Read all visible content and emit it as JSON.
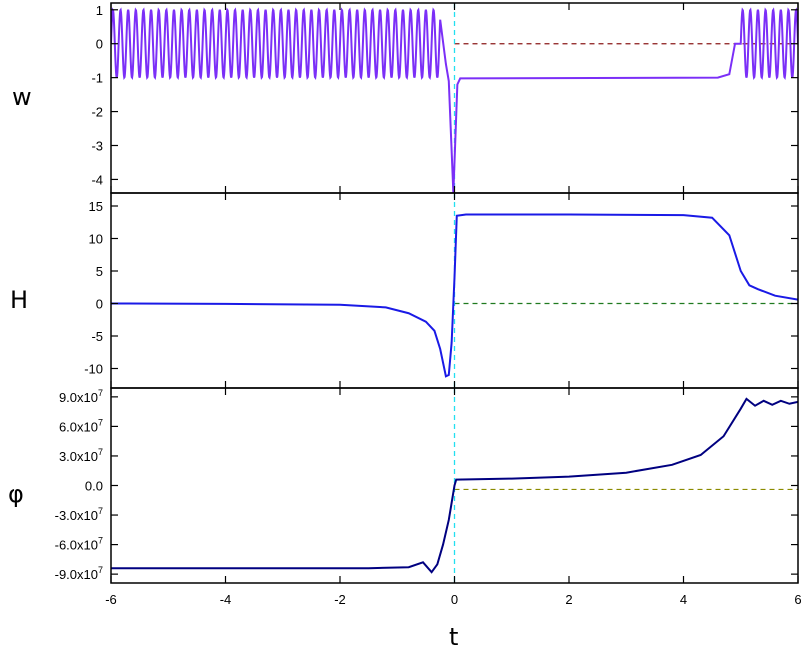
{
  "chart_data": [
    {
      "type": "line",
      "panel": "top",
      "ylabel": "w",
      "xlabel": "",
      "xlim": [
        -6,
        6
      ],
      "ylim": [
        -4.4,
        1.2
      ],
      "yticks": [
        1,
        0,
        -1,
        -2,
        -3,
        -4
      ],
      "ytick_labels": [
        "1",
        "0",
        "-1",
        "-2",
        "-3",
        "-4"
      ],
      "reference_line": {
        "y": 0,
        "style": "dashed",
        "color": "#8b1a1a"
      },
      "vertical_marker": {
        "x": 0,
        "style": "dashed",
        "color": "#22e0f0"
      },
      "series": [
        {
          "color": "#7b2ff7",
          "description_points": [
            {
              "x": -6.0,
              "y_range": [
                -1,
                1
              ],
              "note": "oscillation"
            },
            {
              "x": -0.25,
              "y_range": [
                -1,
                1
              ],
              "note": "oscillation ends"
            },
            {
              "x": -0.1,
              "y": -1.1
            },
            {
              "x": -0.02,
              "y": -4.4
            },
            {
              "x": 0.05,
              "y": -1.2
            },
            {
              "x": 0.1,
              "y": -1.02
            },
            {
              "x": 4.6,
              "y": -1.0
            },
            {
              "x": 4.8,
              "y": -0.9
            },
            {
              "x": 4.9,
              "y": 0.0
            },
            {
              "x": 5.0,
              "y_range": [
                -1,
                1
              ],
              "note": "oscillation resumes"
            },
            {
              "x": 6.0,
              "y_range": [
                -1,
                1
              ]
            }
          ]
        }
      ]
    },
    {
      "type": "line",
      "panel": "middle",
      "ylabel": "H",
      "xlabel": "",
      "xlim": [
        -6,
        6
      ],
      "ylim": [
        -13,
        17
      ],
      "yticks": [
        15,
        10,
        5,
        0,
        -5,
        -10
      ],
      "ytick_labels": [
        "15",
        "10",
        "5",
        "0",
        "-5",
        "-10"
      ],
      "reference_line": {
        "y": 0,
        "style": "dashed",
        "color": "#1f7a1f"
      },
      "vertical_marker": {
        "x": 0,
        "style": "dashed",
        "color": "#22e0f0"
      },
      "series": [
        {
          "color": "#1a1ae6",
          "points": [
            [
              -6.0,
              0.0
            ],
            [
              -4.0,
              -0.05
            ],
            [
              -2.0,
              -0.2
            ],
            [
              -1.2,
              -0.6
            ],
            [
              -0.8,
              -1.5
            ],
            [
              -0.5,
              -2.8
            ],
            [
              -0.35,
              -4.2
            ],
            [
              -0.25,
              -7.0
            ],
            [
              -0.15,
              -11.2
            ],
            [
              -0.1,
              -11.0
            ],
            [
              -0.05,
              -6.0
            ],
            [
              0.0,
              4.0
            ],
            [
              0.04,
              13.5
            ],
            [
              0.2,
              13.7
            ],
            [
              2.0,
              13.7
            ],
            [
              4.0,
              13.6
            ],
            [
              4.5,
              13.2
            ],
            [
              4.8,
              10.5
            ],
            [
              5.0,
              5.0
            ],
            [
              5.15,
              2.8
            ],
            [
              5.3,
              2.2
            ],
            [
              5.6,
              1.2
            ],
            [
              6.0,
              0.6
            ]
          ]
        }
      ]
    },
    {
      "type": "line",
      "panel": "bottom",
      "ylabel": "φ",
      "xlabel": "t",
      "xlim": [
        -6,
        6
      ],
      "xticks": [
        -6,
        -4,
        -2,
        0,
        2,
        4,
        6
      ],
      "xtick_labels": [
        "-6",
        "-4",
        "-2",
        "0",
        "2",
        "4",
        "6"
      ],
      "ylim": [
        -99000000,
        99000000
      ],
      "yticks": [
        90000000,
        60000000,
        30000000,
        0,
        -30000000,
        -60000000,
        -90000000
      ],
      "ytick_labels": [
        {
          "mantissa": "9.0x10",
          "exp": "7"
        },
        {
          "mantissa": "6.0x10",
          "exp": "7"
        },
        {
          "mantissa": "3.0x10",
          "exp": "7"
        },
        {
          "mantissa": "0.0",
          "exp": ""
        },
        {
          "mantissa": "-3.0x10",
          "exp": "7"
        },
        {
          "mantissa": "-6.0x10",
          "exp": "7"
        },
        {
          "mantissa": "-9.0x10",
          "exp": "7"
        }
      ],
      "reference_line": {
        "y": -4000000,
        "style": "dashed",
        "color": "#8b8b00"
      },
      "vertical_marker": {
        "x": 0,
        "style": "dashed",
        "color": "#22e0f0"
      },
      "series": [
        {
          "color": "#000080",
          "points": [
            [
              -6.0,
              -84000000
            ],
            [
              -3.0,
              -84000000
            ],
            [
              -1.5,
              -84000000
            ],
            [
              -0.8,
              -83000000
            ],
            [
              -0.55,
              -78000000
            ],
            [
              -0.4,
              -88000000
            ],
            [
              -0.3,
              -80000000
            ],
            [
              -0.2,
              -60000000
            ],
            [
              -0.1,
              -35000000
            ],
            [
              0.0,
              0
            ],
            [
              0.03,
              6000000
            ],
            [
              1.0,
              7000000
            ],
            [
              2.0,
              9000000
            ],
            [
              3.0,
              13000000
            ],
            [
              3.8,
              21000000
            ],
            [
              4.3,
              31000000
            ],
            [
              4.7,
              50000000
            ],
            [
              5.0,
              78000000
            ],
            [
              5.1,
              88000000
            ],
            [
              5.25,
              81000000
            ],
            [
              5.4,
              86000000
            ],
            [
              5.55,
              82000000
            ],
            [
              5.7,
              86000000
            ],
            [
              5.85,
              83000000
            ],
            [
              6.0,
              85000000
            ]
          ]
        }
      ]
    }
  ]
}
